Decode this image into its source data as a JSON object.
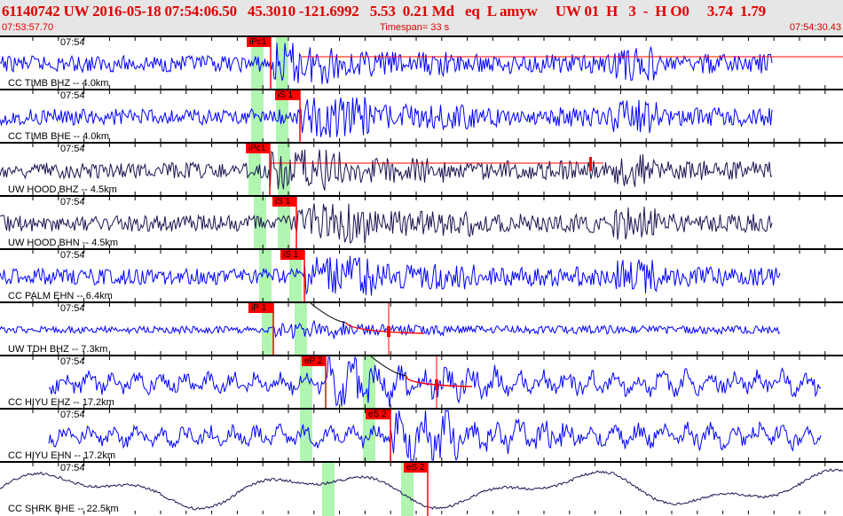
{
  "header": {
    "event_line": "61140742 UW 2016-05-18 07:54:06.50   45.3010 -121.6992   5.53  0.21 Md   eq  L amyw     UW 01  H   3  -  H O0     3.74  1.79",
    "start_time": "07:53:57.70",
    "timespan": "Timespan=  33 s",
    "end_time": "07:54:30.43"
  },
  "colors": {
    "header_text": "#e00000",
    "pick": "#ff0000",
    "window": "#b0f5b0",
    "trace_blue": "#0000ff",
    "trace_navy": "#1a1450"
  },
  "traces": [
    {
      "label": "CC TIMB BHZ -- 4.0km",
      "time": "07:54",
      "pick": "iPc1"
    },
    {
      "label": "CC TIMB BHE -- 4.0km",
      "time": "07:54",
      "pick": "iS 1"
    },
    {
      "label": "UW HOOD BHZ -- 4.5km",
      "time": "07:54",
      "pick": "iPc1"
    },
    {
      "label": "UW HOOD BHN -- 4.5km",
      "time": "07:54",
      "pick": "iS 1"
    },
    {
      "label": "CC PALM EHN -- 6.4km",
      "time": "07:54",
      "pick": "iS 1"
    },
    {
      "label": "UW TDH BHZ -- 7.3km",
      "time": "07:54",
      "pick": "iP 1"
    },
    {
      "label": "CC HIYU EHZ -- 17.2km",
      "time": "07:54",
      "pick": "eP 2"
    },
    {
      "label": "CC HIYU EHN -- 17.2km",
      "time": "07:54",
      "pick": "eS 2"
    },
    {
      "label": "CC SHRK BHE -- 22.5km",
      "time": "07:54",
      "pick": "eS 2"
    }
  ]
}
